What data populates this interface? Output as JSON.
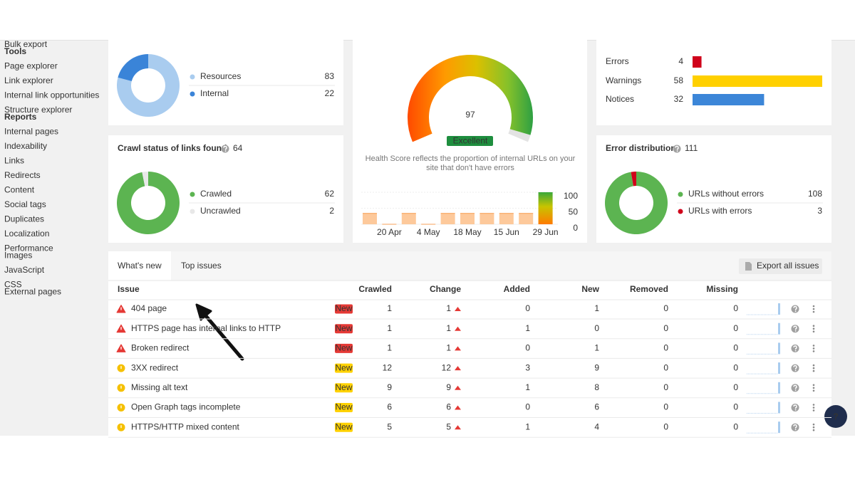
{
  "sidebar": {
    "groups": [
      {
        "items": [
          "Bulk export"
        ]
      },
      {
        "heading": "Tools",
        "items": [
          "Page explorer",
          "Link explorer",
          "Internal link opportunities",
          "Structure explorer"
        ]
      },
      {
        "heading": "Reports",
        "items": [
          "Internal pages",
          "Indexability",
          "Links",
          "Redirects",
          "Content",
          "Social tags",
          "Duplicates",
          "Localization",
          "Performance"
        ]
      },
      {
        "items": [
          "Images",
          "JavaScript",
          "CSS"
        ]
      },
      {
        "items": [
          "External pages"
        ]
      }
    ]
  },
  "links_card": {
    "legend": [
      {
        "name": "Resources",
        "value": 83,
        "color": "#a9ccef"
      },
      {
        "name": "Internal",
        "value": 22,
        "color": "#3a84d8"
      }
    ]
  },
  "crawl_status": {
    "title": "Crawl status of links found",
    "total": 64,
    "legend": [
      {
        "name": "Crawled",
        "value": 62,
        "color": "#5cb451"
      },
      {
        "name": "Uncrawled",
        "value": 2,
        "color": "#e8e8e8"
      }
    ]
  },
  "health_score": {
    "score": 97,
    "gauge_lim": [
      0,
      100
    ],
    "rating": "Excellent",
    "description": "Health Score reflects the proportion of internal URLs on your site that don't have errors",
    "history": {
      "type": "bar",
      "categories": [
        null,
        "20 Apr",
        null,
        "4 May",
        null,
        "18 May",
        null,
        "15 Jun",
        null,
        "29 Jun"
      ],
      "values": [
        35,
        1,
        35,
        1,
        35,
        35,
        35,
        35,
        35,
        100
      ],
      "ylim": [
        0,
        100
      ],
      "yticks": [
        0,
        50,
        100
      ]
    }
  },
  "issues_summary": {
    "rows": [
      {
        "name": "Errors",
        "value": 4,
        "color": "#d0021b"
      },
      {
        "name": "Warnings",
        "value": 58,
        "color": "#ffd000"
      },
      {
        "name": "Notices",
        "value": 32,
        "color": "#3c86d8"
      }
    ]
  },
  "error_distribution": {
    "title": "Error distribution",
    "total": 111,
    "legend": [
      {
        "name": "URLs without errors",
        "value": 108,
        "color": "#5cb451"
      },
      {
        "name": "URLs with errors",
        "value": 3,
        "color": "#d0021b"
      }
    ]
  },
  "issues_table": {
    "tabs": [
      "What's new",
      "Top issues"
    ],
    "export_button": "Export all issues",
    "columns": [
      "Issue",
      "Crawled",
      "Change",
      "Added",
      "New",
      "Removed",
      "Missing"
    ],
    "rows": [
      {
        "issue": "404 page",
        "severity": "error",
        "badge": "New",
        "cells": [
          1,
          1,
          0,
          1,
          0,
          0
        ]
      },
      {
        "issue": "HTTPS page has internal links to HTTP",
        "severity": "error",
        "badge": "New",
        "cells": [
          1,
          1,
          1,
          0,
          0,
          0
        ]
      },
      {
        "issue": "Broken redirect",
        "severity": "error",
        "badge": "New",
        "cells": [
          1,
          1,
          0,
          1,
          0,
          0
        ]
      },
      {
        "issue": "3XX redirect",
        "severity": "warning",
        "badge": "New",
        "cells": [
          12,
          12,
          3,
          9,
          0,
          0
        ]
      },
      {
        "issue": "Missing alt text",
        "severity": "warning",
        "badge": "New",
        "cells": [
          9,
          9,
          1,
          8,
          0,
          0
        ]
      },
      {
        "issue": "Open Graph tags incomplete",
        "severity": "warning",
        "badge": "New",
        "cells": [
          6,
          6,
          0,
          6,
          0,
          0
        ]
      },
      {
        "issue": "HTTPS/HTTP mixed content",
        "severity": "warning",
        "badge": "New",
        "cells": [
          5,
          5,
          1,
          4,
          0,
          0
        ]
      }
    ]
  },
  "help_button": "?"
}
